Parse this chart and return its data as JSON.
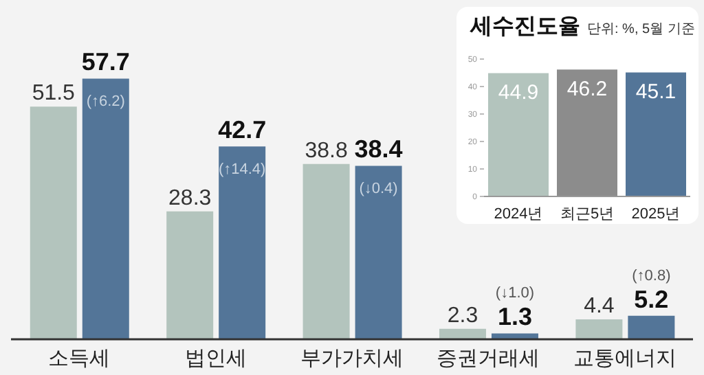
{
  "chart_data": [
    {
      "type": "bar",
      "categories": [
        "소득세",
        "법인세",
        "부가가치세",
        "증권거래세",
        "교통에너지"
      ],
      "series": [
        {
          "color": "#b3c4bd",
          "values": [
            51.5,
            28.3,
            38.8,
            2.3,
            4.4
          ]
        },
        {
          "color": "#537598",
          "values": [
            57.7,
            42.7,
            38.4,
            1.3,
            5.2
          ]
        }
      ],
      "data_labels": true,
      "annotations": [
        {
          "text": "(↑6.2)",
          "x": "소득세",
          "y": 57.7
        },
        {
          "text": "(↑14.4)",
          "x": "법인세",
          "y": 42.7
        },
        {
          "text": "(↓0.4)",
          "x": "부가가치세",
          "y": 38.4
        },
        {
          "text": "(↓1.0)",
          "x": "증권거래세",
          "y": 1.3
        },
        {
          "text": "(↑0.8)",
          "x": "교통에너지",
          "y": 5.2
        }
      ]
    },
    {
      "type": "bar",
      "title": "세수진도율",
      "subtitle": "단위: %, 5월 기준",
      "categories": [
        "2024년",
        "최근5년",
        "2025년"
      ],
      "values": [
        44.9,
        46.2,
        45.1
      ],
      "colors": [
        "#b3c4bd",
        "#8c8c8c",
        "#537598"
      ],
      "ylim": [
        0,
        50
      ],
      "yticks": [
        0,
        10,
        20,
        30,
        40,
        50
      ],
      "data_labels": true
    }
  ]
}
